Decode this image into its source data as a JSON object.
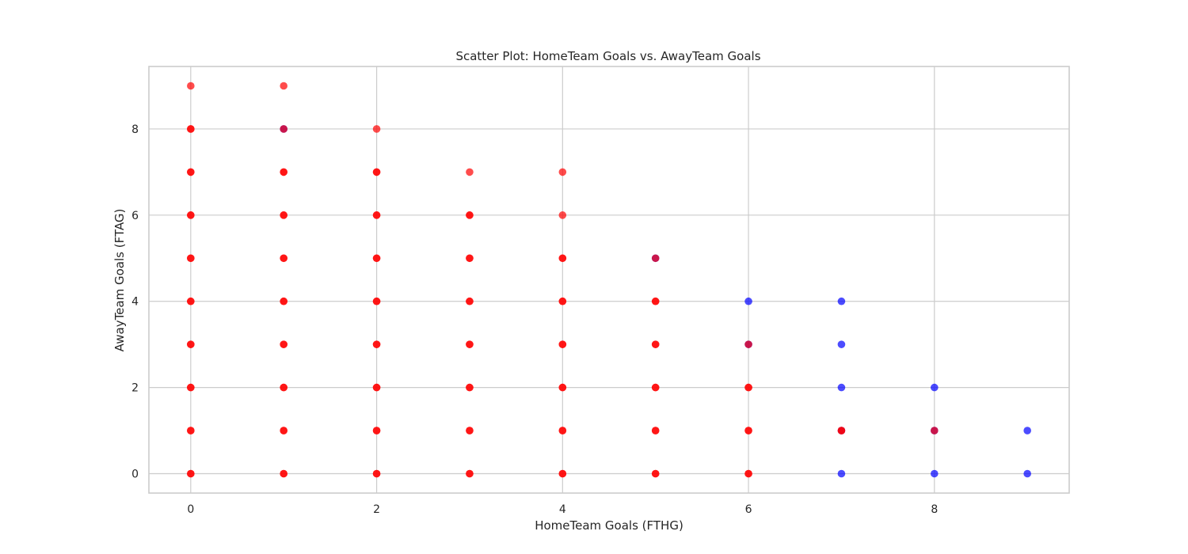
{
  "chart_data": {
    "type": "scatter",
    "title": "Scatter Plot: HomeTeam Goals vs. AwayTeam Goals",
    "xlabel": "HomeTeam Goals (FTHG)",
    "ylabel": "AwayTeam Goals (FTAG)",
    "xlim": [
      -0.45,
      9.45
    ],
    "ylim": [
      -0.45,
      9.45
    ],
    "xticks": [
      0,
      2,
      4,
      6,
      8
    ],
    "yticks": [
      0,
      2,
      4,
      6,
      8
    ],
    "xtick_labels": [
      "0",
      "2",
      "4",
      "6",
      "8"
    ],
    "ytick_labels": [
      "0",
      "2",
      "4",
      "6",
      "8"
    ],
    "grid": true,
    "marker_alpha": 0.7,
    "series": [
      {
        "color": "#0000ff",
        "points": [
          [
            6,
            4
          ],
          [
            7,
            4
          ],
          [
            7,
            3
          ],
          [
            7,
            2
          ],
          [
            7,
            1
          ],
          [
            7,
            0
          ],
          [
            8,
            2
          ],
          [
            8,
            1
          ],
          [
            8,
            0
          ],
          [
            9,
            1
          ],
          [
            9,
            0
          ],
          [
            1,
            8
          ],
          [
            5,
            5
          ],
          [
            6,
            3
          ]
        ]
      },
      {
        "color": "#ff0000",
        "points": [
          [
            0,
            9
          ],
          [
            0,
            8
          ],
          [
            0,
            7
          ],
          [
            0,
            6
          ],
          [
            0,
            5
          ],
          [
            0,
            4
          ],
          [
            0,
            3
          ],
          [
            0,
            2
          ],
          [
            0,
            1
          ],
          [
            0,
            0
          ],
          [
            1,
            9
          ],
          [
            1,
            8
          ],
          [
            1,
            7
          ],
          [
            1,
            6
          ],
          [
            1,
            5
          ],
          [
            1,
            4
          ],
          [
            1,
            3
          ],
          [
            1,
            2
          ],
          [
            1,
            1
          ],
          [
            1,
            0
          ],
          [
            2,
            8
          ],
          [
            2,
            7
          ],
          [
            2,
            6
          ],
          [
            2,
            5
          ],
          [
            2,
            4
          ],
          [
            2,
            3
          ],
          [
            2,
            2
          ],
          [
            2,
            1
          ],
          [
            2,
            0
          ],
          [
            3,
            7
          ],
          [
            3,
            6
          ],
          [
            3,
            5
          ],
          [
            3,
            4
          ],
          [
            3,
            3
          ],
          [
            3,
            2
          ],
          [
            3,
            1
          ],
          [
            3,
            0
          ],
          [
            4,
            7
          ],
          [
            4,
            6
          ],
          [
            4,
            5
          ],
          [
            4,
            4
          ],
          [
            4,
            3
          ],
          [
            4,
            2
          ],
          [
            4,
            1
          ],
          [
            4,
            0
          ],
          [
            5,
            5
          ],
          [
            5,
            4
          ],
          [
            5,
            3
          ],
          [
            5,
            2
          ],
          [
            5,
            1
          ],
          [
            5,
            0
          ],
          [
            6,
            3
          ],
          [
            6,
            2
          ],
          [
            6,
            1
          ],
          [
            6,
            0
          ],
          [
            7,
            1
          ],
          [
            8,
            1
          ]
        ]
      },
      {
        "color": "#ff0000",
        "points": [
          [
            0,
            8
          ],
          [
            0,
            7
          ],
          [
            0,
            6
          ],
          [
            0,
            5
          ],
          [
            0,
            4
          ],
          [
            0,
            3
          ],
          [
            0,
            2
          ],
          [
            0,
            1
          ],
          [
            0,
            0
          ],
          [
            1,
            7
          ],
          [
            1,
            6
          ],
          [
            1,
            5
          ],
          [
            1,
            4
          ],
          [
            1,
            3
          ],
          [
            1,
            2
          ],
          [
            1,
            1
          ],
          [
            1,
            0
          ],
          [
            2,
            7
          ],
          [
            2,
            6
          ],
          [
            2,
            5
          ],
          [
            2,
            4
          ],
          [
            2,
            3
          ],
          [
            2,
            2
          ],
          [
            2,
            1
          ],
          [
            2,
            0
          ],
          [
            3,
            6
          ],
          [
            3,
            5
          ],
          [
            3,
            4
          ],
          [
            3,
            3
          ],
          [
            3,
            2
          ],
          [
            3,
            1
          ],
          [
            3,
            0
          ],
          [
            4,
            5
          ],
          [
            4,
            4
          ],
          [
            4,
            3
          ],
          [
            4,
            2
          ],
          [
            4,
            1
          ],
          [
            4,
            0
          ],
          [
            5,
            4
          ],
          [
            5,
            3
          ],
          [
            5,
            2
          ],
          [
            5,
            1
          ],
          [
            5,
            0
          ],
          [
            6,
            2
          ],
          [
            6,
            1
          ],
          [
            6,
            0
          ],
          [
            7,
            1
          ]
        ]
      }
    ]
  }
}
